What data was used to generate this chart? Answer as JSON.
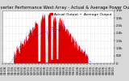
{
  "title": "Solar PV/Inverter Performance West Array - Actual & Average Power Output",
  "bg_color": "#d8d8d8",
  "plot_bg_color": "#ffffff",
  "bar_color": "#dd0000",
  "avg_line_color": "#0000ff",
  "avg_line_color2": "#ff0000",
  "grid_color": "#aaaaaa",
  "num_points": 300,
  "peak_value": 3200,
  "ylim": [
    0,
    3500
  ],
  "y_ticks": [
    0,
    500,
    1000,
    1500,
    2000,
    2500,
    3000,
    3500
  ],
  "y_tick_labels": [
    "0",
    "500",
    "1.0k",
    "1.5k",
    "2.0k",
    "2.5k",
    "3.0k",
    "3.5k"
  ],
  "title_fontsize": 3.8,
  "tick_fontsize": 2.8,
  "legend_fontsize": 3.2,
  "legend_actual": "Actual Output",
  "legend_average": "Average Output"
}
